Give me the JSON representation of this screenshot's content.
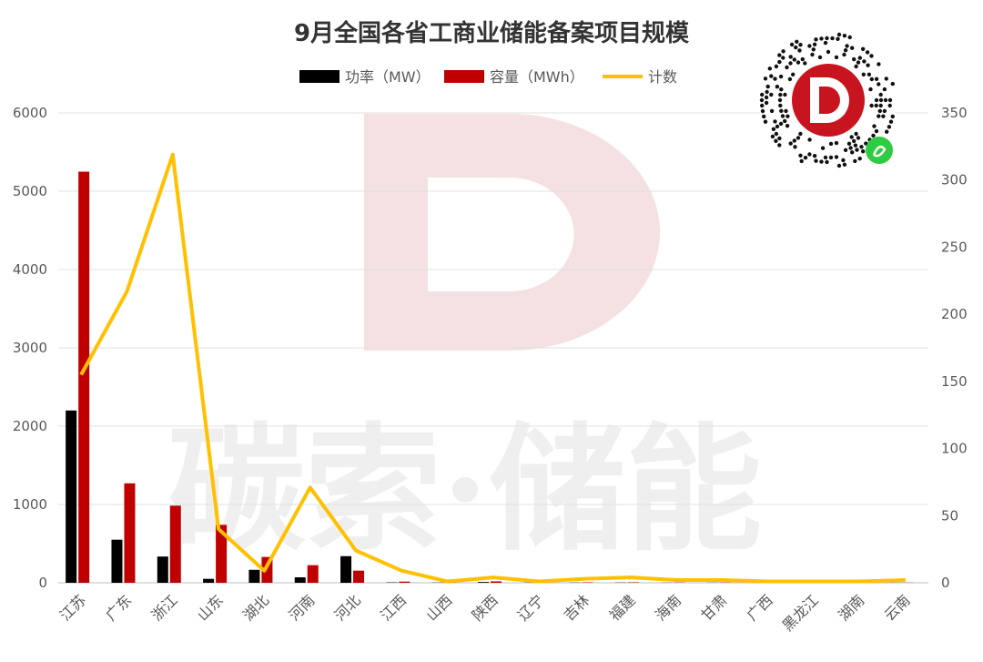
{
  "chart_data": {
    "type": "bar",
    "title": "9月全国各省工商业储能备案项目规模",
    "categories": [
      "江苏",
      "广东",
      "浙江",
      "山东",
      "湖北",
      "河南",
      "河北",
      "江西",
      "山西",
      "陕西",
      "辽宁",
      "吉林",
      "福建",
      "海南",
      "甘肃",
      "广西",
      "黑龙江",
      "湖南",
      "云南"
    ],
    "series": [
      {
        "name": "功率（MW）",
        "type": "bar",
        "axis": "left",
        "color": "#000000",
        "values": [
          2200,
          550,
          335,
          50,
          165,
          70,
          340,
          5,
          3,
          10,
          2,
          3,
          3,
          2,
          2,
          1,
          1,
          1,
          1
        ]
      },
      {
        "name": "容量（MWh）",
        "type": "bar",
        "axis": "left",
        "color": "#c00000",
        "values": [
          5250,
          1270,
          985,
          740,
          330,
          225,
          155,
          15,
          6,
          18,
          4,
          6,
          6,
          4,
          4,
          2,
          2,
          2,
          2
        ]
      },
      {
        "name": "计数",
        "type": "line",
        "axis": "right",
        "color": "#ffc000",
        "values": [
          155,
          217,
          319,
          40,
          9,
          71,
          24,
          9,
          1,
          4,
          1,
          3,
          4,
          2,
          2,
          1,
          1,
          1,
          2
        ]
      }
    ],
    "ylim_left": [
      0,
      6000
    ],
    "yticks_left": [
      "0",
      "1000",
      "2000",
      "3000",
      "4000",
      "5000",
      "6000"
    ],
    "ylim_right": [
      0,
      350
    ],
    "yticks_right": [
      "0",
      "50",
      "100",
      "150",
      "200",
      "250",
      "300",
      "350"
    ],
    "grid": true,
    "legend_position": "top"
  },
  "watermark": {
    "text": "碳索·储能",
    "logo_letter": "D"
  }
}
